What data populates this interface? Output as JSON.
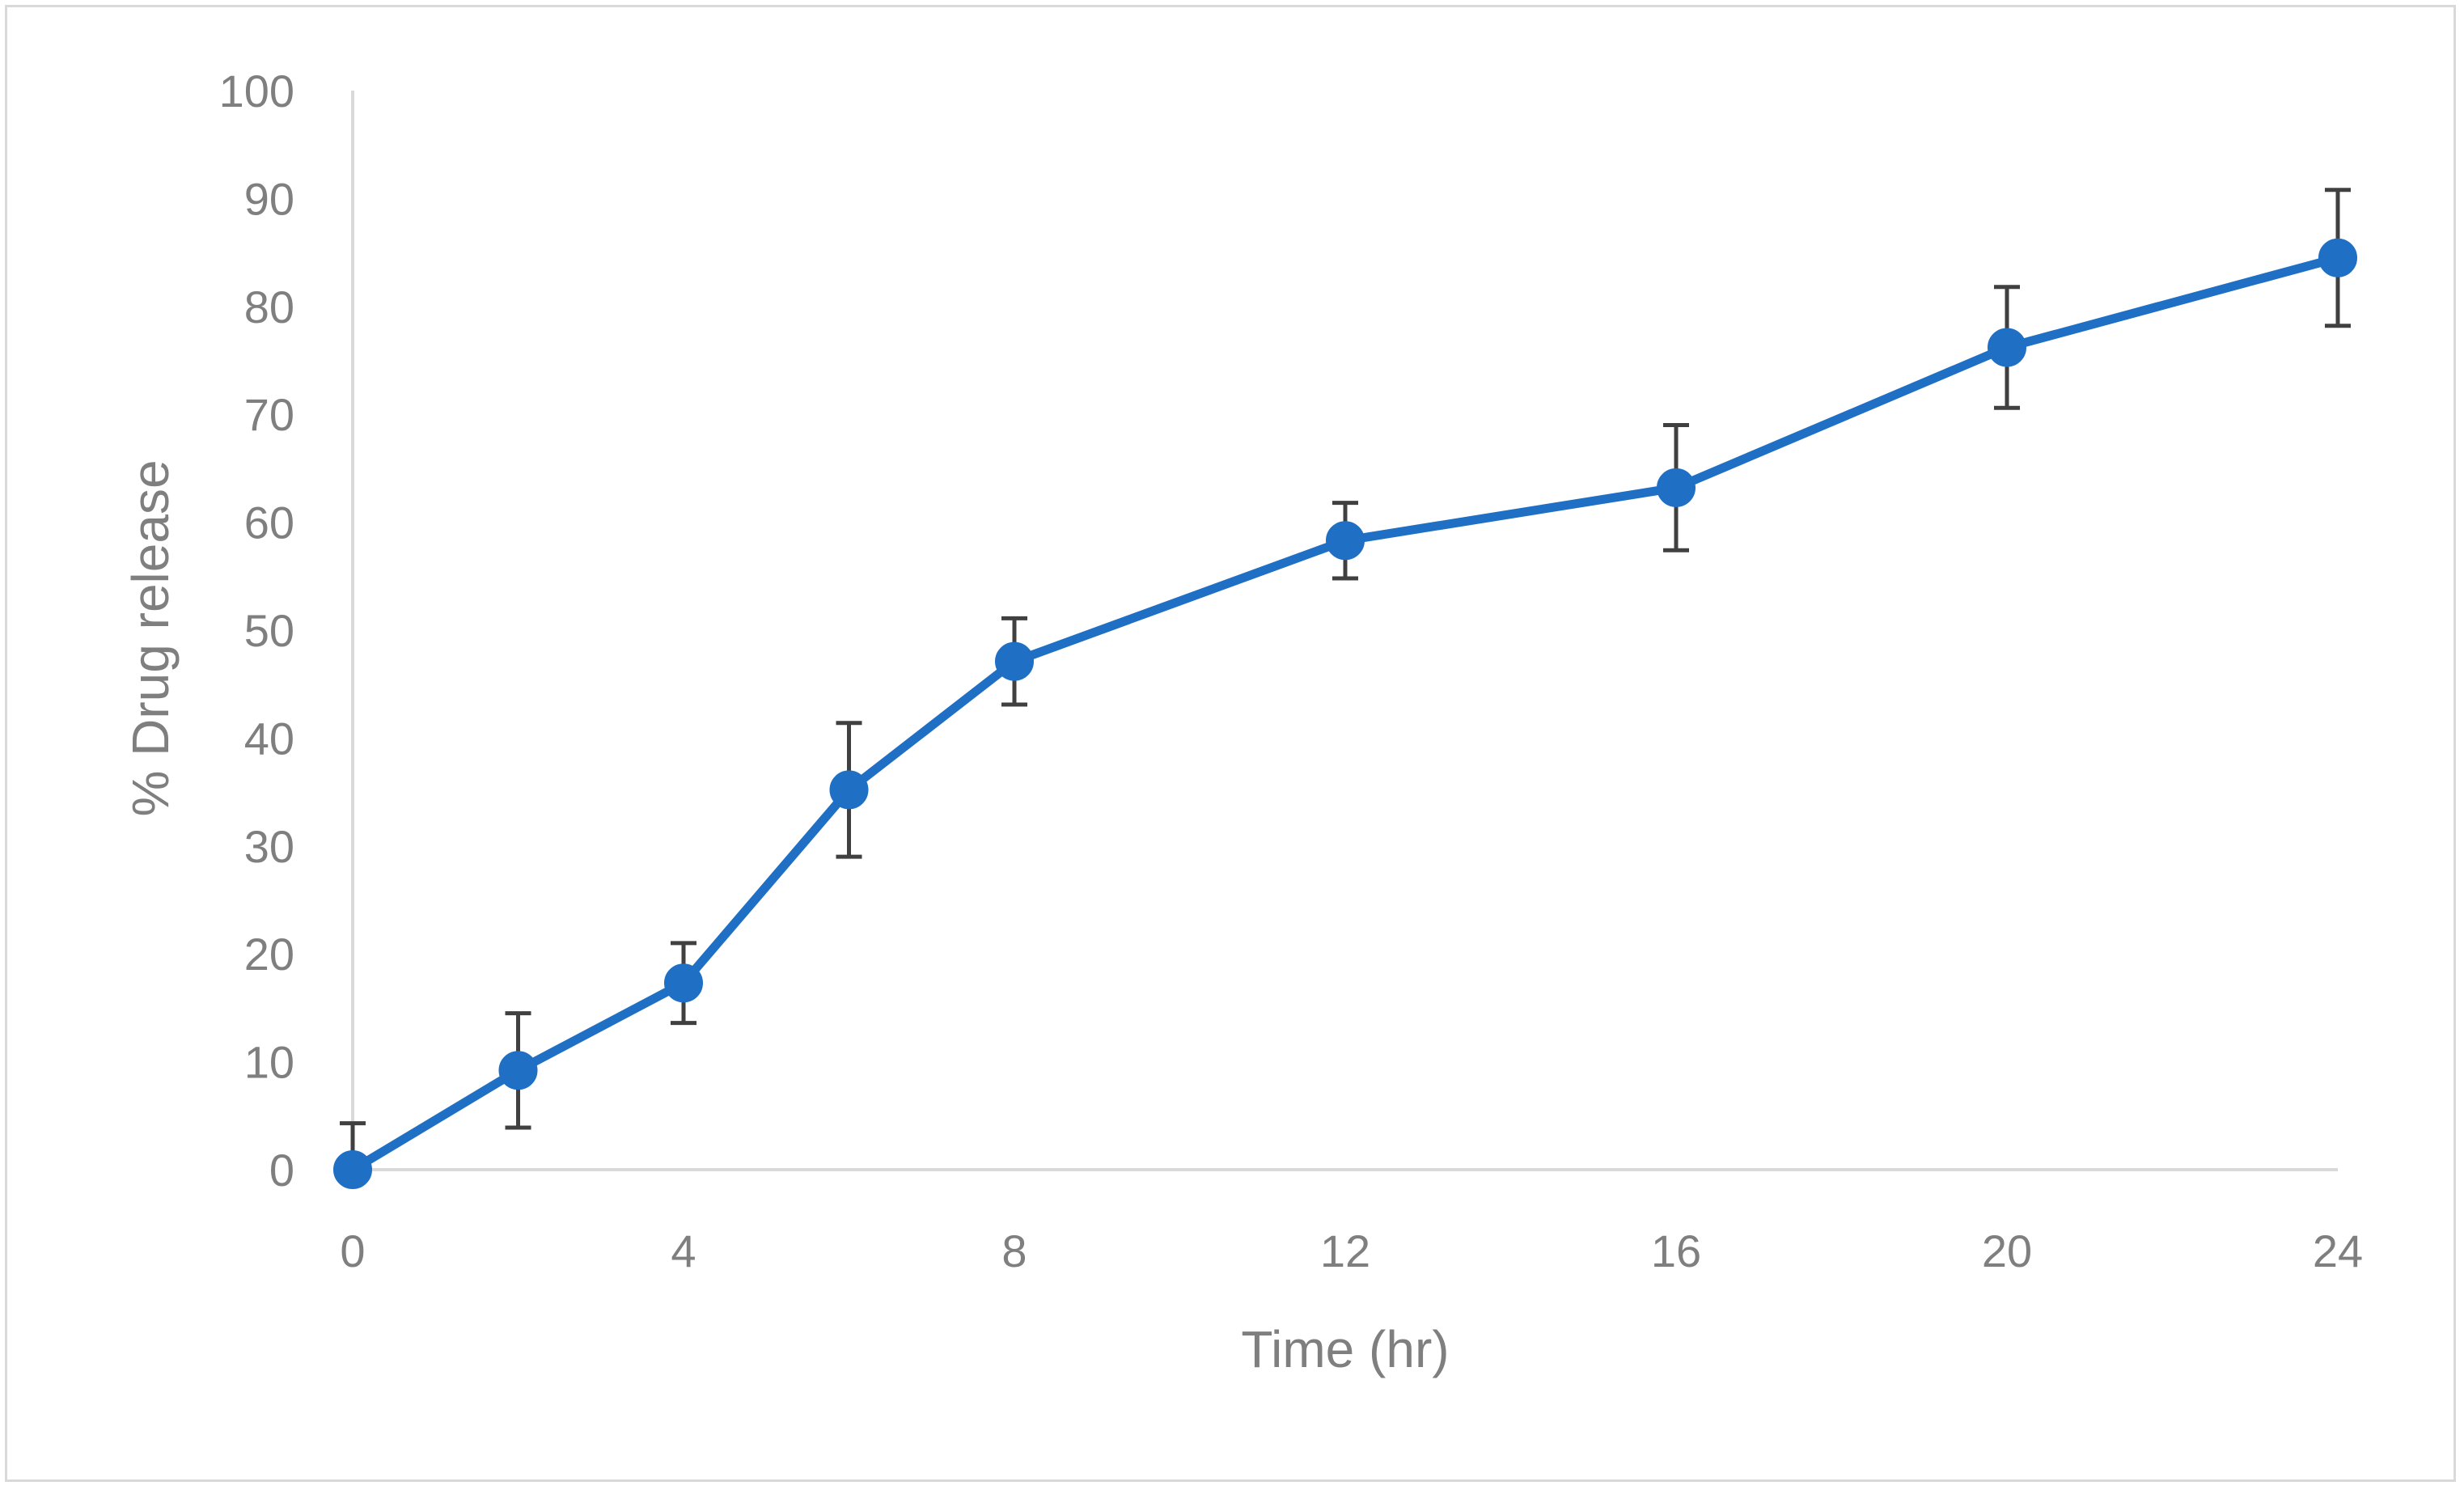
{
  "chart_data": {
    "type": "line",
    "title": "",
    "xlabel": "Time (hr)",
    "ylabel": "% Drug release",
    "x": [
      0,
      2,
      4,
      6,
      8,
      12,
      16,
      20,
      24
    ],
    "xticks": [
      0,
      4,
      8,
      12,
      16,
      20,
      24
    ],
    "xlim": [
      0,
      24
    ],
    "ylim": [
      0,
      100
    ],
    "yticks": [
      0,
      10,
      20,
      30,
      40,
      50,
      60,
      70,
      80,
      90,
      100
    ],
    "grid": false,
    "legend": "none",
    "series": [
      {
        "values": [
          0,
          9.2,
          17.3,
          35.2,
          47.1,
          58.3,
          63.2,
          76.2,
          84.5
        ],
        "error": [
          4.3,
          5.3,
          3.7,
          6.2,
          4.0,
          3.5,
          5.8,
          5.6,
          6.3
        ],
        "color": "#1f6fc5",
        "marker": "circle"
      }
    ],
    "colors": {
      "line": "#1f6fc5",
      "error_bar": "#404040",
      "axis": "#d9d9d9",
      "text": "#7f7f7f"
    }
  }
}
